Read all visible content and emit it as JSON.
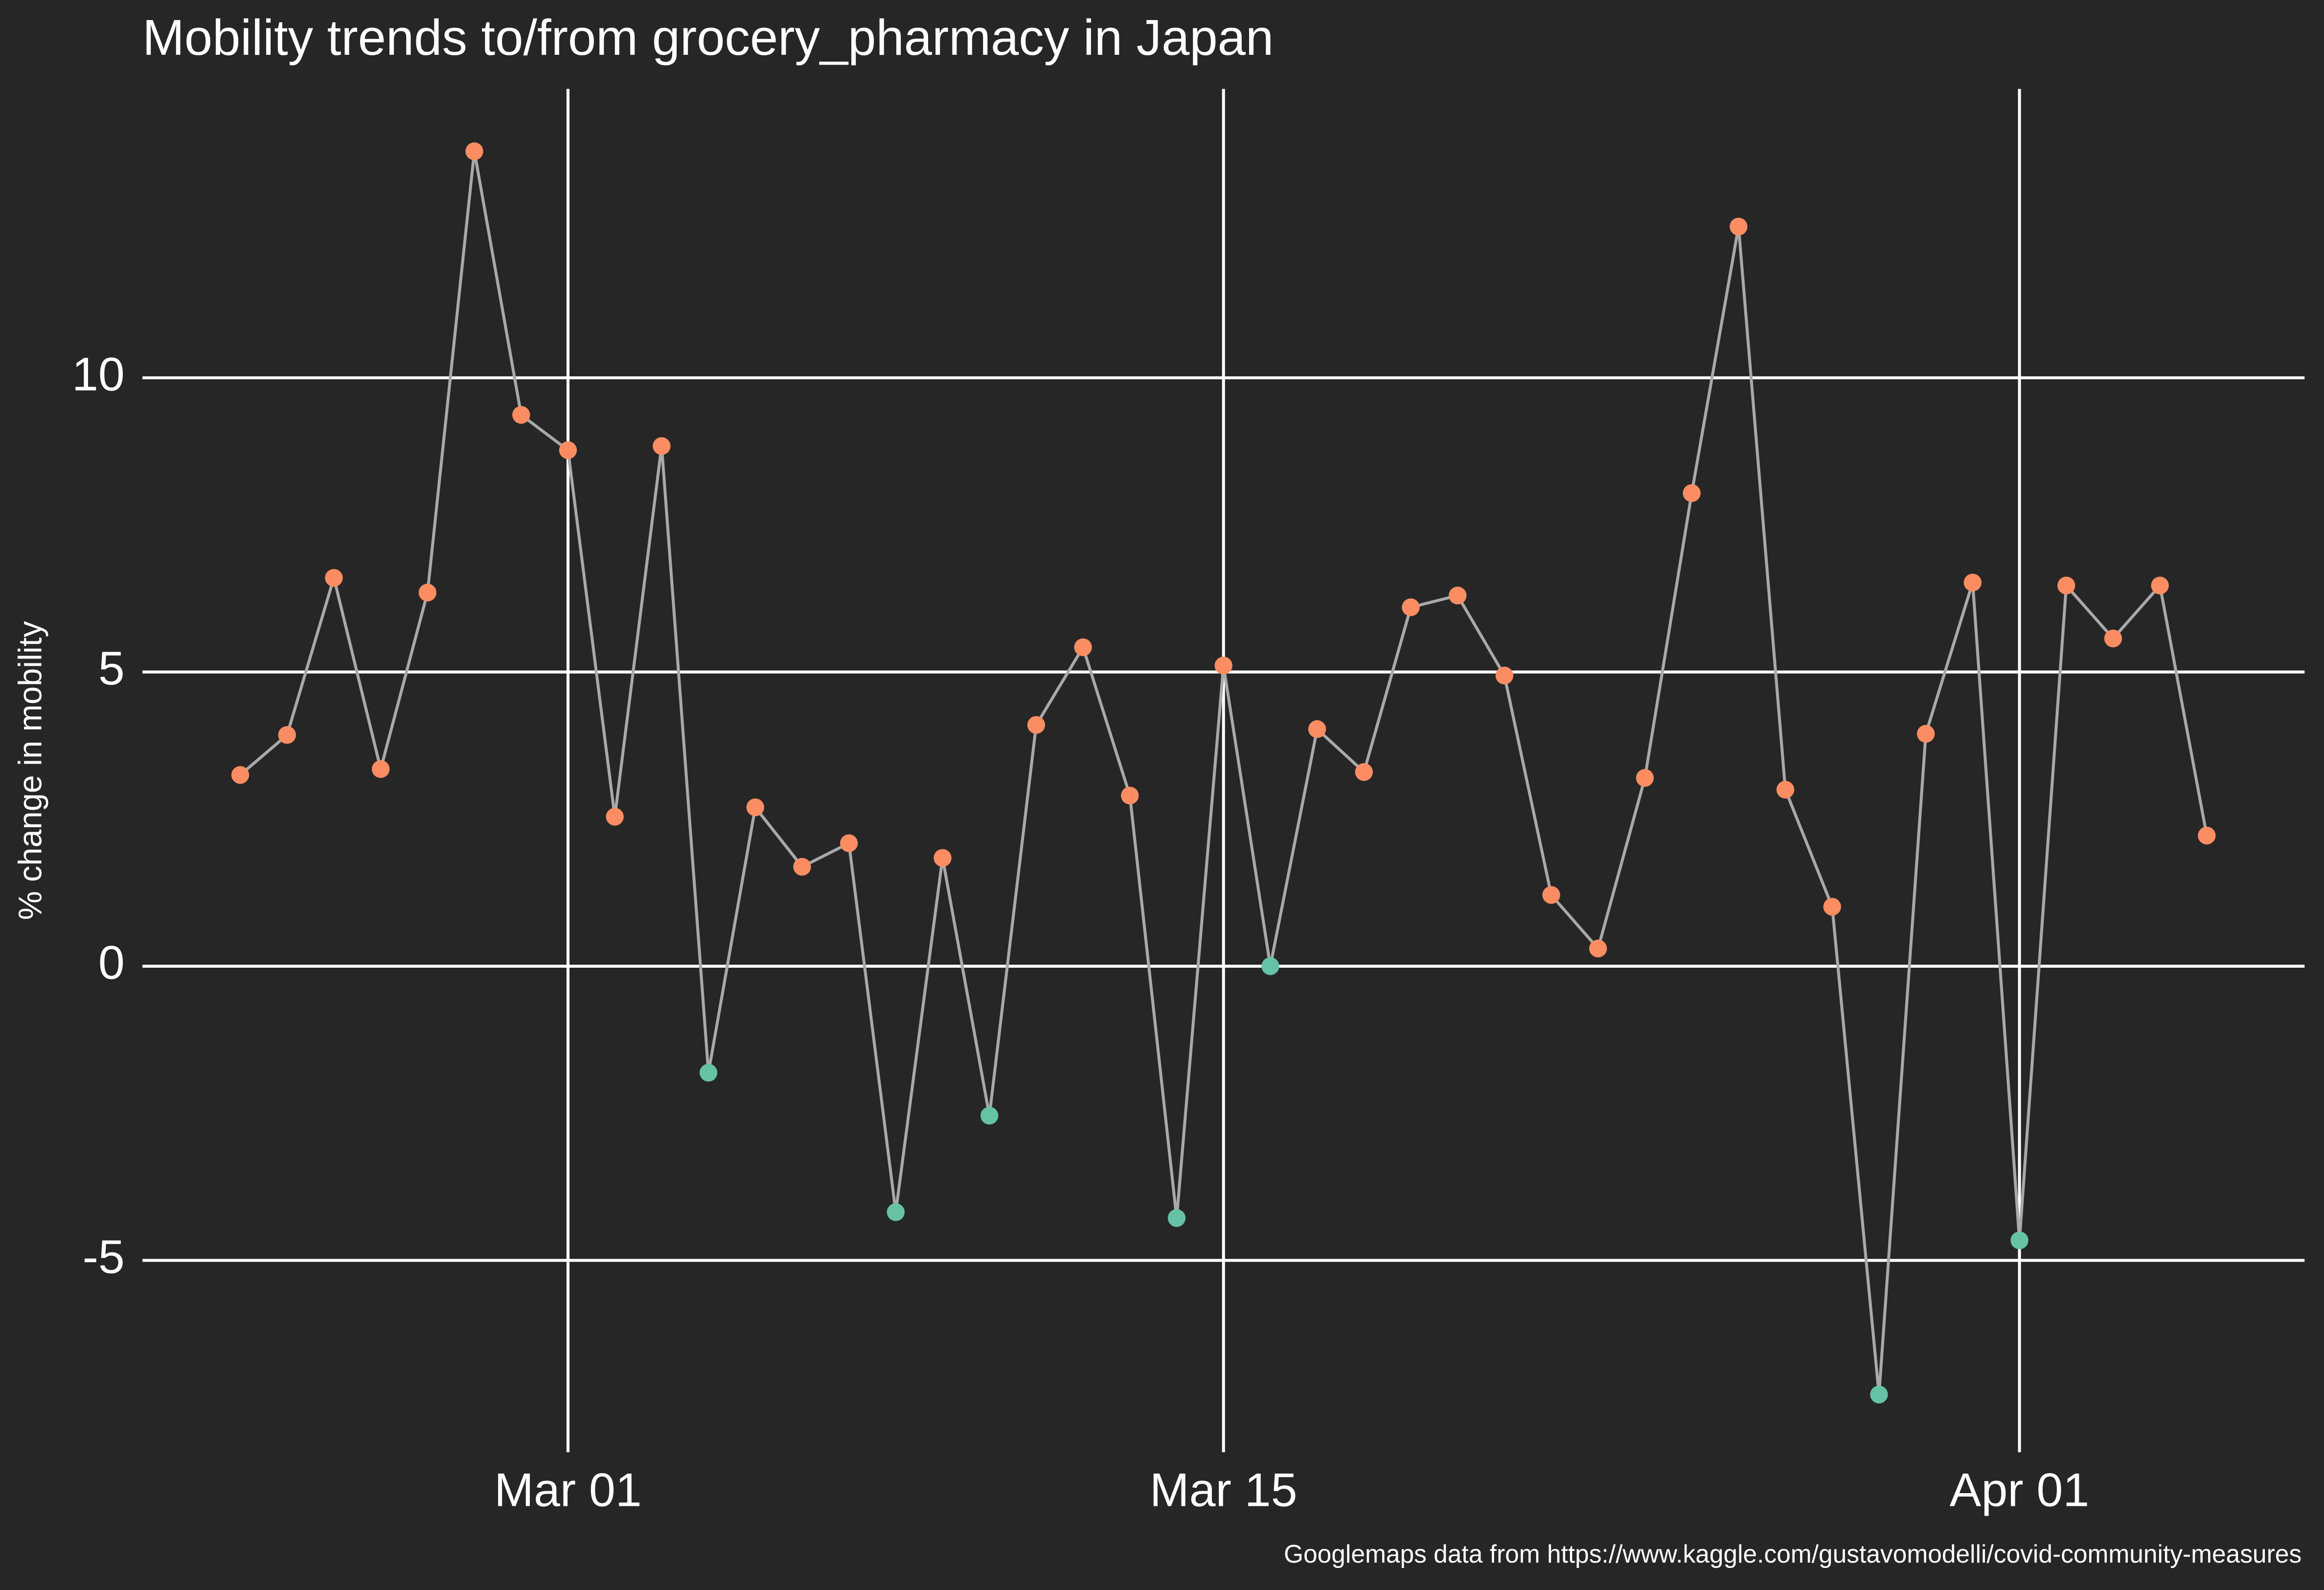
{
  "chart_data": {
    "type": "line",
    "title": "Mobility trends to/from grocery_pharmacy in Japan",
    "ylabel": "% change in mobility",
    "caption": "Googlemaps data from https://www.kaggle.com/gustavomodelli/covid-community-measures",
    "x": [
      "Feb 23",
      "Feb 24",
      "Feb 25",
      "Feb 26",
      "Feb 27",
      "Feb 28",
      "Feb 29",
      "Mar 01",
      "Mar 02",
      "Mar 03",
      "Mar 04",
      "Mar 05",
      "Mar 06",
      "Mar 07",
      "Mar 08",
      "Mar 09",
      "Mar 10",
      "Mar 11",
      "Mar 12",
      "Mar 13",
      "Mar 14",
      "Mar 15",
      "Mar 16",
      "Mar 17",
      "Mar 18",
      "Mar 19",
      "Mar 20",
      "Mar 21",
      "Mar 22",
      "Mar 23",
      "Mar 24",
      "Mar 25",
      "Mar 26",
      "Mar 27",
      "Mar 28",
      "Mar 29",
      "Mar 30",
      "Mar 31",
      "Apr 01",
      "Apr 02",
      "Apr 03",
      "Apr 04",
      "Apr 05"
    ],
    "values": [
      3.25,
      3.93,
      6.6,
      3.35,
      6.35,
      13.85,
      9.37,
      8.77,
      2.54,
      8.84,
      -1.81,
      2.7,
      1.69,
      2.09,
      -4.18,
      1.84,
      -2.54,
      4.1,
      5.42,
      2.9,
      -4.28,
      5.11,
      0,
      4.03,
      3.3,
      6.1,
      6.3,
      4.94,
      1.21,
      0.3,
      3.2,
      8.04,
      12.57,
      3.0,
      1.01,
      -7.28,
      3.95,
      6.52,
      -4.66,
      6.47,
      5.57,
      6.47,
      2.22
    ],
    "point_colors": [
      "#fc8d62",
      "#fc8d62",
      "#fc8d62",
      "#fc8d62",
      "#fc8d62",
      "#fc8d62",
      "#fc8d62",
      "#fc8d62",
      "#fc8d62",
      "#fc8d62",
      "#66c2a5",
      "#fc8d62",
      "#fc8d62",
      "#fc8d62",
      "#66c2a5",
      "#fc8d62",
      "#66c2a5",
      "#fc8d62",
      "#fc8d62",
      "#fc8d62",
      "#66c2a5",
      "#fc8d62",
      "#66c2a5",
      "#fc8d62",
      "#fc8d62",
      "#fc8d62",
      "#fc8d62",
      "#fc8d62",
      "#fc8d62",
      "#fc8d62",
      "#fc8d62",
      "#fc8d62",
      "#fc8d62",
      "#fc8d62",
      "#fc8d62",
      "#66c2a5",
      "#fc8d62",
      "#fc8d62",
      "#66c2a5",
      "#fc8d62",
      "#fc8d62",
      "#fc8d62",
      "#fc8d62"
    ],
    "line_color": "#a9a9a9",
    "xticks": [
      "Mar 01",
      "Mar 15",
      "Apr 01"
    ],
    "ylim": [
      -8.26,
      14.91
    ],
    "yticks": [
      -5,
      0,
      5,
      10
    ],
    "grid": true
  }
}
